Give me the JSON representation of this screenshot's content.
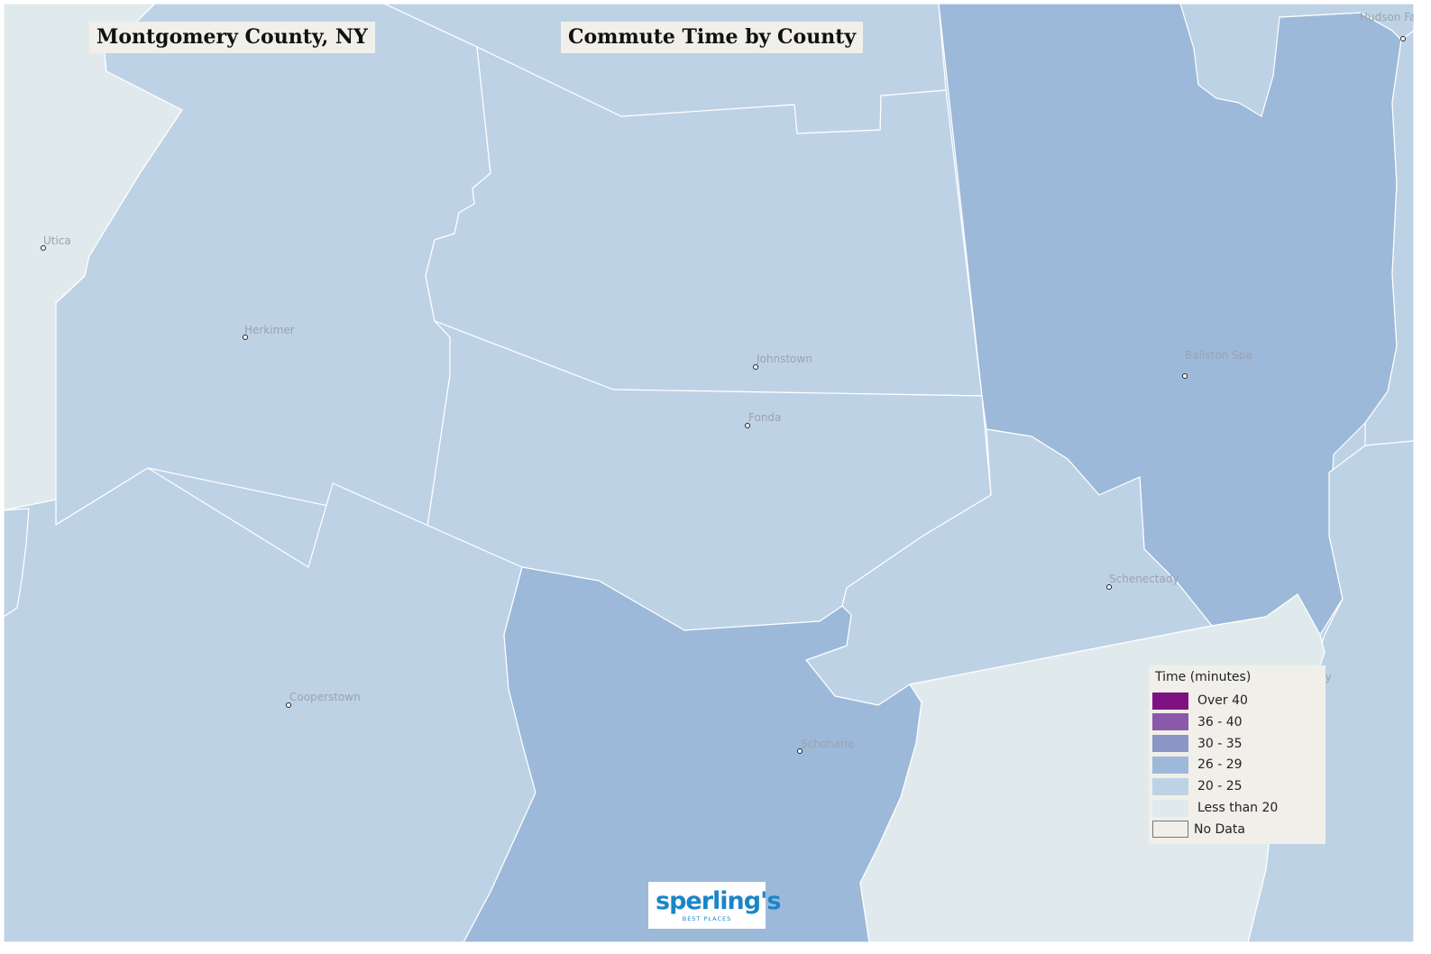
{
  "title": {
    "location": "Montgomery County, NY",
    "subject": "Commute Time by County"
  },
  "colors": {
    "over_40": "#7f1283",
    "r36_40": "#8b5aaa",
    "r30_35": "#8c96c6",
    "r26_29": "#9db9d9",
    "r20_25": "#bed2e6",
    "less_than_20": "#e0eaec",
    "no_data": "#f1efea"
  },
  "legend": {
    "title": "Time  (minutes)",
    "items": [
      {
        "label": "Over 40",
        "color": "#7f1283"
      },
      {
        "label": "36 - 40",
        "color": "#8b5aaa"
      },
      {
        "label": "30 - 35",
        "color": "#8c96c6"
      },
      {
        "label": "26 - 29",
        "color": "#9db9d9"
      },
      {
        "label": "20 - 25",
        "color": "#bed2e6"
      },
      {
        "label": "Less than 20",
        "color": "#e0eaec"
      },
      {
        "label": "No Data",
        "color": "#f1efea"
      }
    ]
  },
  "cities": {
    "utica": "Utica",
    "herkimer": "Herkimer",
    "johnstown": "Johnstown",
    "fonda": "Fonda",
    "cooperstown": "Cooperstown",
    "schoharie": "Schoharie",
    "ballston_spa": "Ballston Spa",
    "schenectady": "Schenectady",
    "hudson_falls": "Hudson Falls",
    "troy": "Troy"
  },
  "logo": {
    "name": "sperling's",
    "tagline": "BEST PLACES"
  }
}
